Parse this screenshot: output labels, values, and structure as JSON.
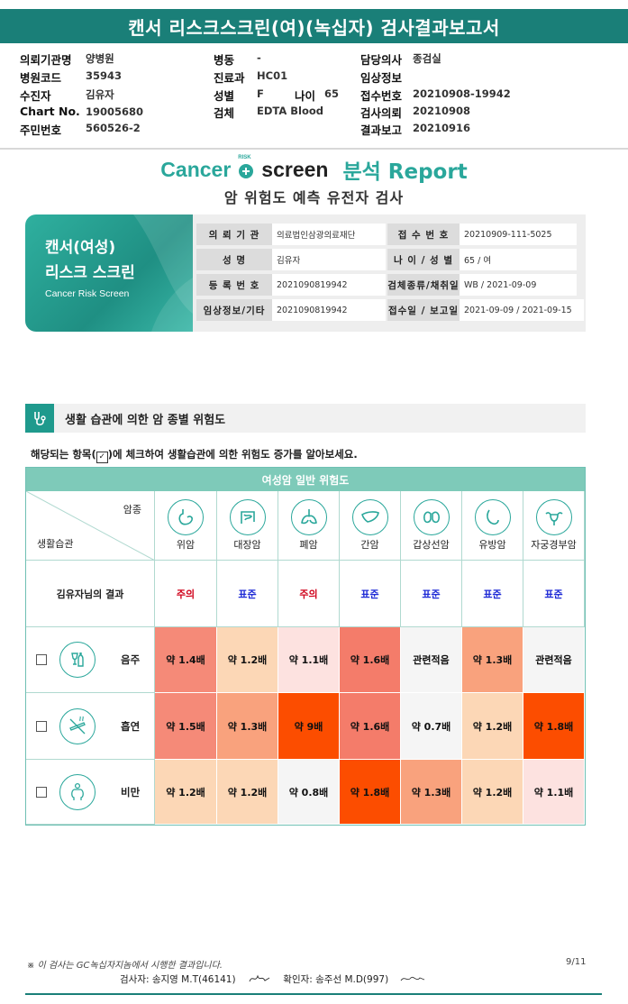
{
  "title": "캔서 리스크스크린(여)(녹십자) 검사결과보고서",
  "patient_info": {
    "hospital_label": "의뢰기관명",
    "hospital": "양병원",
    "code_label": "병원코드",
    "code": "35943",
    "examinee_label": "수진자",
    "examinee": "김유자",
    "chart_label": "Chart No.",
    "chart": "19005680",
    "rrn_label": "주민번호",
    "rrn": "560526-2",
    "ward_label": "병동",
    "ward": "-",
    "dept_label": "진료과",
    "dept": "HC01",
    "sex_label": "성별",
    "sex": "F",
    "age_label": "나이",
    "age": "65",
    "specimen_label": "검체",
    "specimen": "EDTA Blood",
    "doctor_label": "담당의사",
    "doctor": "종검실",
    "clinical_label": "임상정보",
    "clinical": "",
    "receipt_label": "접수번호",
    "receipt": "20210908-19942",
    "request_label": "검사의뢰",
    "request": "20210908",
    "report_label": "결과보고",
    "report": "20210916"
  },
  "logo": {
    "cancer": "Cancer",
    "risk": "RISK",
    "screen": "screen",
    "report": "분석 Report"
  },
  "subtitle": "암 위험도 예측 유전자 검사",
  "banner": {
    "line1": "캔서(여성)",
    "line2": "리스크 스크린",
    "line3": "Cancer Risk Screen"
  },
  "ptable": {
    "k1": "의 뢰 기 관",
    "v1": "의료법인삼광의료재단",
    "k2": "접 수 번 호",
    "v2": "20210909-111-5025",
    "k3": "성        명",
    "v3": "김유자",
    "k4": "나 이 / 성 별",
    "v4": "65 / 여",
    "k5": "등 록 번 호",
    "v5": "2021090819942",
    "k6": "검체종류/채취일",
    "v6": "WB / 2021-09-09",
    "k7": "임상정보/기타",
    "v7": "2021090819942",
    "k8": "접수일 / 보고일",
    "v8": "2021-09-09 / 2021-09-15"
  },
  "section_title": "생활 습관에 의한 암 종별 위험도",
  "instruction_pre": "해당되는 항목(",
  "instruction_check": "✓",
  "instruction_post": ")에 체크하여 생활습관에 의한 위험도 증가를 알아보세요.",
  "grid": {
    "header": "여성암 일반 위험도",
    "corner_top": "암종",
    "corner_bottom": "생활습관",
    "cancers": [
      "위암",
      "대장암",
      "폐암",
      "간암",
      "갑상선암",
      "유방암",
      "자궁경부암"
    ],
    "result_label": "김유자님의 결과",
    "results": [
      {
        "text": "주의",
        "color": "#d0021b"
      },
      {
        "text": "표준",
        "color": "#1f2bd6"
      },
      {
        "text": "주의",
        "color": "#d0021b"
      },
      {
        "text": "표준",
        "color": "#1f2bd6"
      },
      {
        "text": "표준",
        "color": "#1f2bd6"
      },
      {
        "text": "표준",
        "color": "#1f2bd6"
      },
      {
        "text": "표준",
        "color": "#1f2bd6"
      }
    ],
    "habits": [
      {
        "name": "음주",
        "icon": "drinking-icon",
        "cells": [
          {
            "t": "약 1.4배",
            "c": "#f58a78"
          },
          {
            "t": "약 1.2배",
            "c": "#fcd7b6"
          },
          {
            "t": "약 1.1배",
            "c": "#fde2e0"
          },
          {
            "t": "약 1.6배",
            "c": "#f47c6a"
          },
          {
            "t": "관련적음",
            "c": "#f5f5f5"
          },
          {
            "t": "약 1.3배",
            "c": "#f9a27d"
          },
          {
            "t": "관련적음",
            "c": "#f5f5f5"
          }
        ]
      },
      {
        "name": "흡연",
        "icon": "smoking-icon",
        "cells": [
          {
            "t": "약 1.5배",
            "c": "#f58a78"
          },
          {
            "t": "약 1.3배",
            "c": "#f9a27d"
          },
          {
            "t": "약 9배",
            "c": "#fc4d00"
          },
          {
            "t": "약 1.6배",
            "c": "#f47c6a"
          },
          {
            "t": "약 0.7배",
            "c": "#f5f5f5"
          },
          {
            "t": "약 1.2배",
            "c": "#fcd7b6"
          },
          {
            "t": "약 1.8배",
            "c": "#fc4d00"
          }
        ]
      },
      {
        "name": "비만",
        "icon": "obesity-icon",
        "cells": [
          {
            "t": "약 1.2배",
            "c": "#fcd7b6"
          },
          {
            "t": "약 1.2배",
            "c": "#fcd7b6"
          },
          {
            "t": "약 0.8배",
            "c": "#f5f5f5"
          },
          {
            "t": "약 1.8배",
            "c": "#fc4d00"
          },
          {
            "t": "약 1.3배",
            "c": "#f9a27d"
          },
          {
            "t": "약 1.2배",
            "c": "#fcd7b6"
          },
          {
            "t": "약 1.1배",
            "c": "#fde2e0"
          }
        ]
      }
    ]
  },
  "footer": {
    "note": "※ 이 검사는 GC녹십자지놈에서 시행한 결과입니다.",
    "page": "9/11",
    "tester": "검사자: 송지영 M.T(46141)",
    "confirmer": "확인자: 송주선 M.D(997)"
  }
}
